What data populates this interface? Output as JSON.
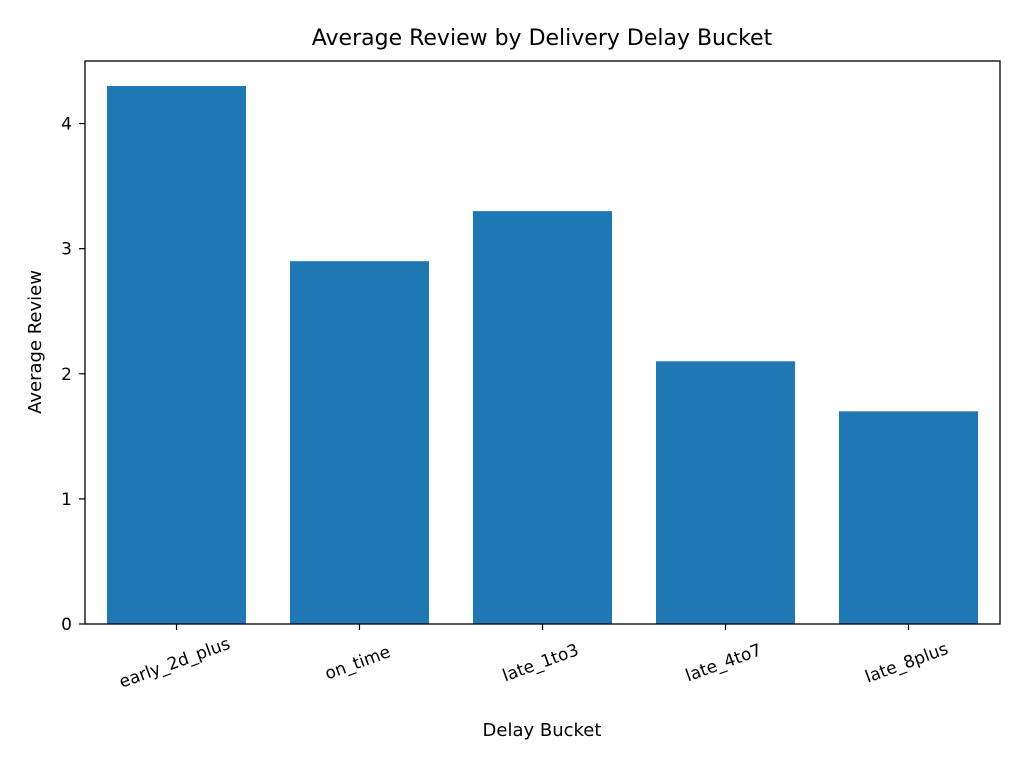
{
  "chart_data": {
    "type": "bar",
    "title": "Average Review by Delivery Delay Bucket",
    "xlabel": "Delay Bucket",
    "ylabel": "Average Review",
    "categories": [
      "early_2d_plus",
      "on_time",
      "late_1to3",
      "late_4to7",
      "late_8plus"
    ],
    "values": [
      4.3,
      2.9,
      3.3,
      2.1,
      1.7
    ],
    "yticks": [
      0,
      1,
      2,
      3,
      4
    ],
    "ylim": [
      0,
      4.5
    ],
    "bar_color": "#1f77b4",
    "grid": false,
    "legend": "none"
  }
}
